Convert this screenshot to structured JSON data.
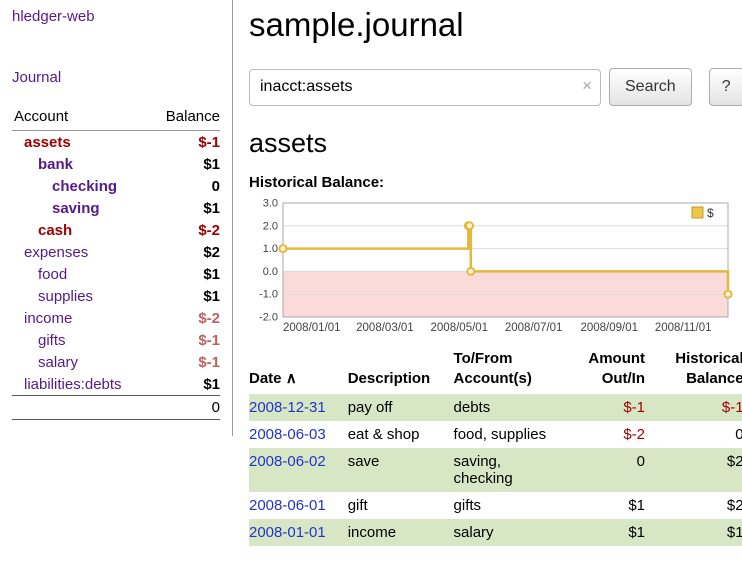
{
  "sidebar": {
    "app_title": "hledger-web",
    "nav": {
      "journal": "Journal"
    },
    "accounts": {
      "headers": {
        "account": "Account",
        "balance": "Balance"
      },
      "rows": [
        {
          "name": "assets",
          "balance": "$-1",
          "indent": 1,
          "bold": true,
          "name_negative": true,
          "balance_negative": "strong"
        },
        {
          "name": "bank",
          "balance": "$1",
          "indent": 2,
          "bold": true,
          "name_negative": false,
          "balance_negative": ""
        },
        {
          "name": "checking",
          "balance": "0",
          "indent": 3,
          "bold": true,
          "name_negative": false,
          "balance_negative": ""
        },
        {
          "name": "saving",
          "balance": "$1",
          "indent": 3,
          "bold": true,
          "name_negative": false,
          "balance_negative": ""
        },
        {
          "name": "cash",
          "balance": "$-2",
          "indent": 2,
          "bold": true,
          "name_negative": true,
          "balance_negative": "strong"
        },
        {
          "name": "expenses",
          "balance": "$2",
          "indent": 1,
          "bold": false,
          "name_negative": false,
          "balance_negative": ""
        },
        {
          "name": "food",
          "balance": "$1",
          "indent": 2,
          "bold": false,
          "name_negative": false,
          "balance_negative": ""
        },
        {
          "name": "supplies",
          "balance": "$1",
          "indent": 2,
          "bold": false,
          "name_negative": false,
          "balance_negative": ""
        },
        {
          "name": "income",
          "balance": "$-2",
          "indent": 1,
          "bold": false,
          "name_negative": false,
          "balance_negative": "light"
        },
        {
          "name": "gifts",
          "balance": "$-1",
          "indent": 2,
          "bold": false,
          "name_negative": false,
          "balance_negative": "light"
        },
        {
          "name": "salary",
          "balance": "$-1",
          "indent": 2,
          "bold": false,
          "name_negative": false,
          "balance_negative": "light"
        },
        {
          "name": "liabilities:debts",
          "balance": "$1",
          "indent": 1,
          "bold": false,
          "name_negative": false,
          "balance_negative": ""
        }
      ],
      "total": "0"
    }
  },
  "main": {
    "title": "sample.journal",
    "search": {
      "value": "inacct:assets",
      "clear_icon": "×",
      "button_label": "Search",
      "help_label": "?"
    },
    "account_heading": "assets",
    "chart_label": "Historical Balance:"
  },
  "chart_data": {
    "type": "line",
    "title": "Historical Balance:",
    "legend": [
      "$"
    ],
    "legend_position": "top-right",
    "grid": true,
    "x_range": [
      "2008-01-01",
      "2008-12-31"
    ],
    "ylim": [
      -2.0,
      3.0
    ],
    "yticks": [
      3.0,
      2.0,
      1.0,
      0.0,
      -1.0,
      -2.0
    ],
    "xticks": [
      "2008/01/01",
      "2008/03/01",
      "2008/05/01",
      "2008/07/01",
      "2008/09/01",
      "2008/11/01"
    ],
    "negative_fill": "#fbdada",
    "series": [
      {
        "name": "$",
        "color": "#e2b93d",
        "points": [
          {
            "x": "2008-01-01",
            "y": 1
          },
          {
            "x": "2008-06-01",
            "y": 2
          },
          {
            "x": "2008-06-02",
            "y": 2
          },
          {
            "x": "2008-06-03",
            "y": 0
          },
          {
            "x": "2008-12-31",
            "y": -1
          }
        ]
      }
    ]
  },
  "transactions": {
    "headers": {
      "date": "Date",
      "sort_icon": "∧",
      "description": "Description",
      "accounts": "To/From\nAccount(s)",
      "amount": "Amount\nOut/In",
      "balance": "Historical\nBalance"
    },
    "rows": [
      {
        "date": "2008-12-31",
        "description": "pay off",
        "accounts": "debts",
        "amount": "$-1",
        "balance": "$-1",
        "amount_negative": true,
        "balance_negative": true
      },
      {
        "date": "2008-06-03",
        "description": "eat & shop",
        "accounts": "food, supplies",
        "amount": "$-2",
        "balance": "0",
        "amount_negative": true,
        "balance_negative": false
      },
      {
        "date": "2008-06-02",
        "description": "save",
        "accounts": "saving,\nchecking",
        "amount": "0",
        "balance": "$2",
        "amount_negative": false,
        "balance_negative": false
      },
      {
        "date": "2008-06-01",
        "description": "gift",
        "accounts": "gifts",
        "amount": "$1",
        "balance": "$2",
        "amount_negative": false,
        "balance_negative": false
      },
      {
        "date": "2008-01-01",
        "description": "income",
        "accounts": "salary",
        "amount": "$1",
        "balance": "$1",
        "amount_negative": false,
        "balance_negative": false
      }
    ]
  }
}
